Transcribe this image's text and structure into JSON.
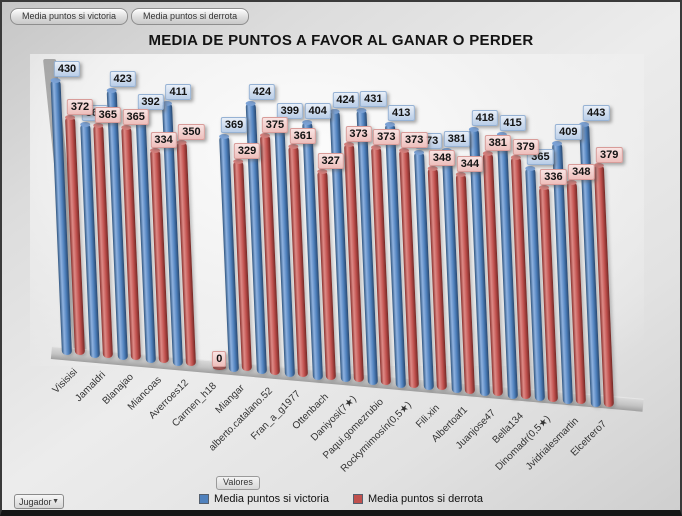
{
  "toolbar": {
    "victory_button": "Media puntos si victoria",
    "defeat_button": "Media puntos si derrota"
  },
  "chart_data": {
    "type": "bar",
    "style": "3d-cylinder",
    "title": "MEDIA DE PUNTOS A FAVOR AL GANAR O PERDER",
    "categories": [
      "Visisisi",
      "Jamaldri",
      "Blanajao",
      "Miancoas",
      "Averroes12",
      "Carmen_h18",
      "Miangar",
      "alberto.catalano.52",
      "Fran_a_g1977",
      "Ottenbach",
      "Daniyosi(7★)",
      "Paqui.gomezrubio",
      "Rockymimosín(0,5★)",
      "Fili.xin",
      "Albertoaf1",
      "Juanjose47",
      "Bella134",
      "Dinomadr(0,5★)",
      "Jvidrialesmartin",
      "Elcetrero7"
    ],
    "series": [
      {
        "name": "Media puntos si victoria",
        "color": "#4f81bd",
        "values": [
          430,
          366,
          423,
          392,
          411,
          null,
          369,
          424,
          399,
          404,
          424,
          431,
          413,
          373,
          381,
          418,
          415,
          365,
          409,
          443
        ]
      },
      {
        "name": "Media puntos si derrota",
        "color": "#c0504d",
        "values": [
          372,
          365,
          365,
          334,
          350,
          0,
          329,
          375,
          361,
          327,
          373,
          373,
          373,
          348,
          344,
          381,
          379,
          336,
          348,
          379
        ]
      }
    ],
    "data_labels": true,
    "grid": false,
    "ylim": [
      0,
      450
    ],
    "legend_title": "Valores",
    "legend_position": "bottom"
  },
  "controls": {
    "category_dropdown": {
      "label": "Jugador"
    }
  },
  "icons": {
    "dropdown_arrow": "▼"
  }
}
